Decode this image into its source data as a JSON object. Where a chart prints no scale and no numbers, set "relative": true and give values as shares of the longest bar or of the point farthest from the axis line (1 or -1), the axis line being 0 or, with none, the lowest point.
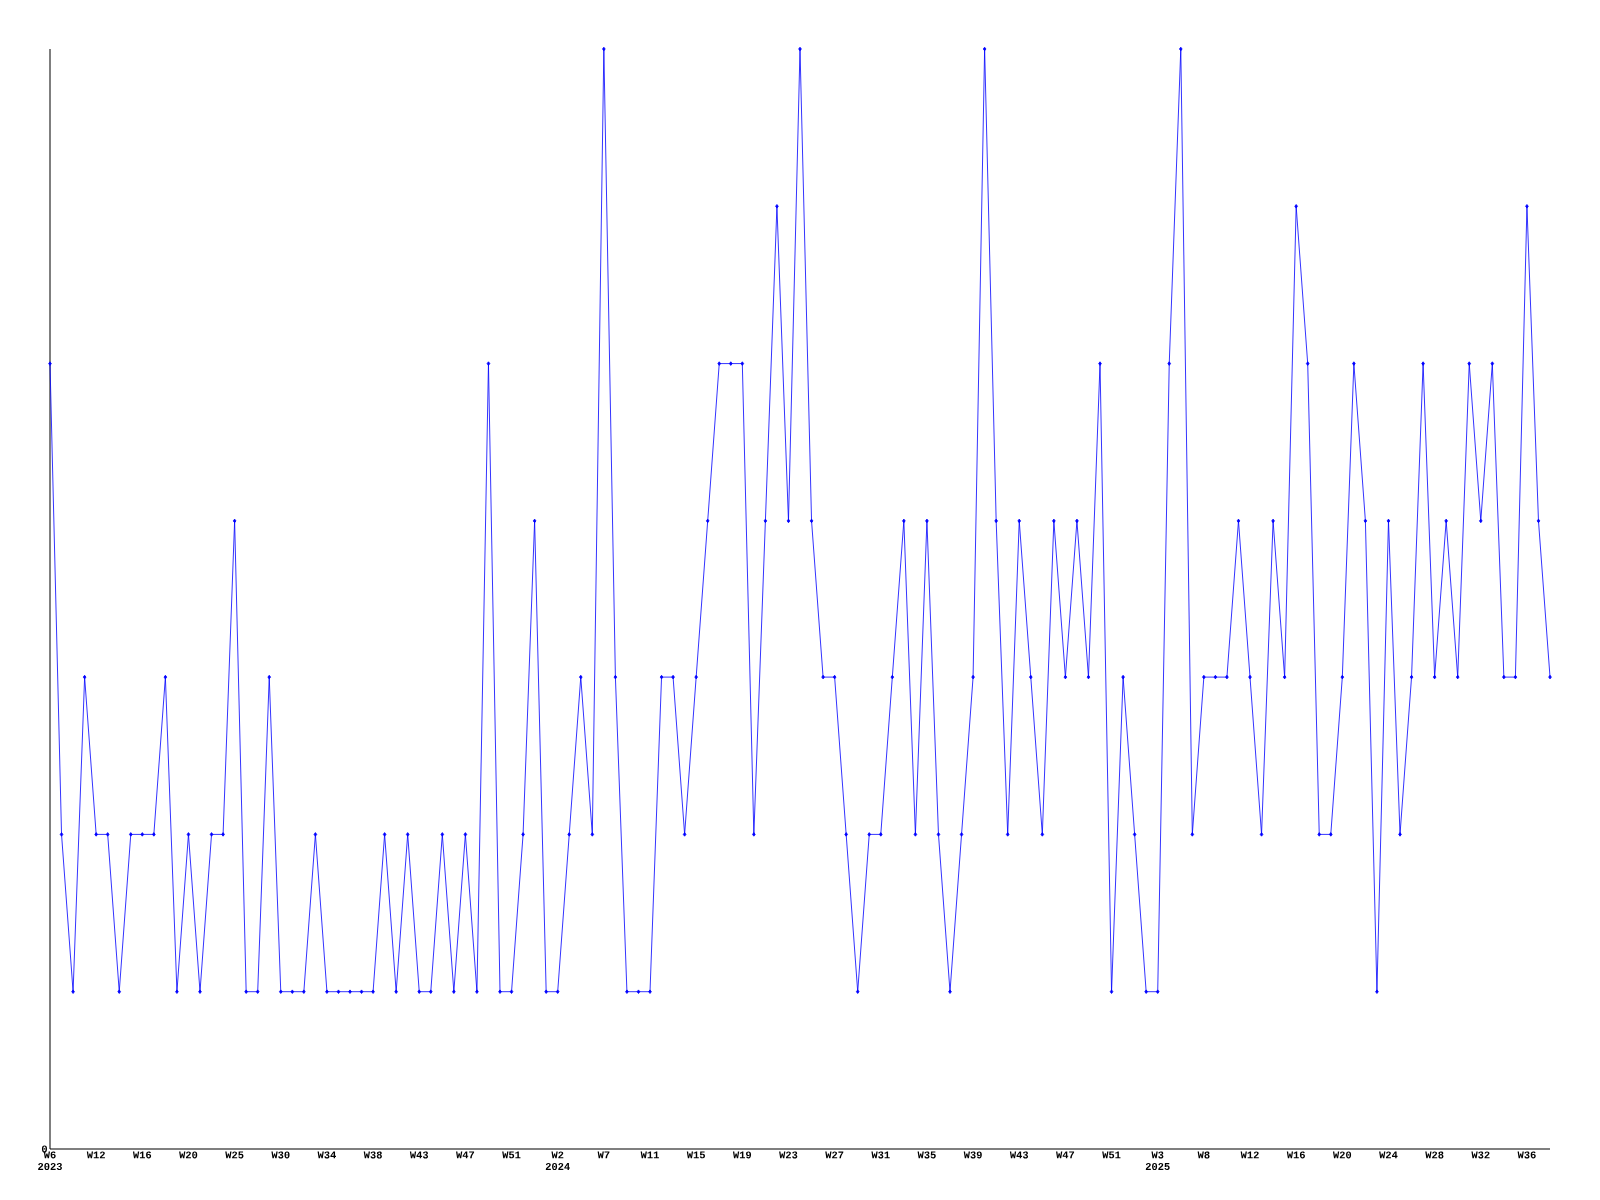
{
  "chart_data": {
    "type": "line",
    "relative": true,
    "marker": "diamond",
    "line_style": "solid",
    "categories": [
      "W6 2023",
      null,
      null,
      null,
      "W12",
      null,
      null,
      null,
      "W16",
      null,
      null,
      null,
      "W20",
      null,
      null,
      null,
      "W25",
      null,
      null,
      null,
      "W30",
      null,
      null,
      null,
      "W34",
      null,
      null,
      null,
      "W38",
      null,
      null,
      null,
      "W43",
      null,
      null,
      null,
      "W47",
      null,
      null,
      null,
      "W51",
      null,
      null,
      null,
      "W2 2024",
      null,
      null,
      null,
      "W7",
      null,
      null,
      null,
      "W11",
      null,
      null,
      null,
      "W15",
      null,
      null,
      null,
      "W19",
      null,
      null,
      null,
      "W23",
      null,
      null,
      null,
      "W27",
      null,
      null,
      null,
      "W31",
      null,
      null,
      null,
      "W35",
      null,
      null,
      null,
      "W39",
      null,
      null,
      null,
      "W43",
      null,
      null,
      null,
      "W47",
      null,
      null,
      null,
      "W51",
      null,
      null,
      null,
      "W3 2025",
      null,
      null,
      null,
      "W8",
      null,
      null,
      null,
      "W12",
      null,
      null,
      null,
      "W16",
      null,
      null,
      null,
      "W20",
      null,
      null,
      null,
      "W24",
      null,
      null,
      null,
      "W28",
      null,
      null,
      null,
      "W32",
      null,
      null,
      null,
      "W36",
      null,
      null
    ],
    "series": [
      {
        "color": "#0000ff",
        "values": [
          0.714,
          0.286,
          0.143,
          0.429,
          0.286,
          0.286,
          0.143,
          0.286,
          0.286,
          0.286,
          0.429,
          0.143,
          0.286,
          0.143,
          0.286,
          0.286,
          0.571,
          0.143,
          0.143,
          0.429,
          0.143,
          0.143,
          0.143,
          0.286,
          0.143,
          0.143,
          0.143,
          0.143,
          0.143,
          0.286,
          0.143,
          0.286,
          0.143,
          0.143,
          0.286,
          0.143,
          0.286,
          0.143,
          0.714,
          0.143,
          0.143,
          0.286,
          0.571,
          0.143,
          0.143,
          0.286,
          0.429,
          0.286,
          1,
          0.429,
          0.143,
          0.143,
          0.143,
          0.429,
          0.429,
          0.286,
          0.429,
          0.571,
          0.714,
          0.714,
          0.714,
          0.286,
          0.571,
          0.857,
          0.571,
          1,
          0.571,
          0.429,
          0.429,
          0.286,
          0.143,
          0.286,
          0.286,
          0.429,
          0.571,
          0.286,
          0.571,
          0.286,
          0.143,
          0.286,
          0.429,
          1,
          0.571,
          0.286,
          0.571,
          0.429,
          0.286,
          0.571,
          0.429,
          0.571,
          0.429,
          0.714,
          0.143,
          0.429,
          0.286,
          0.143,
          0.143,
          0.714,
          1,
          0.286,
          0.429,
          0.429,
          0.429,
          0.571,
          0.429,
          0.286,
          0.571,
          0.429,
          0.857,
          0.714,
          0.286,
          0.286,
          0.429,
          0.714,
          0.571,
          0.143,
          0.571,
          0.286,
          0.429,
          0.714,
          0.429,
          0.571,
          0.429,
          0.714,
          0.571,
          0.714,
          0.429,
          0.429,
          0.857,
          0.571,
          0.429
        ]
      }
    ],
    "annotations": [
      "0"
    ]
  }
}
